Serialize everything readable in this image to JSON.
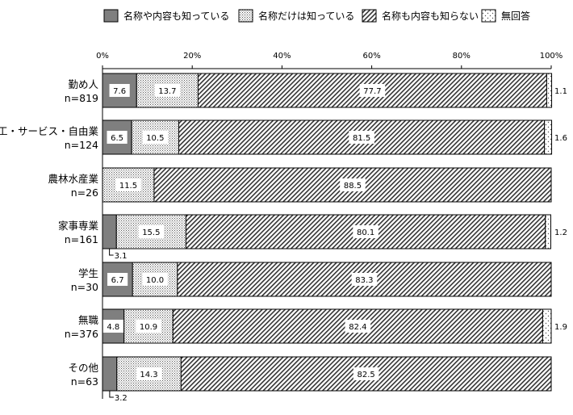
{
  "chart_data": {
    "type": "bar",
    "orientation": "horizontal",
    "stacked": "percent",
    "legend_position": "top",
    "grid": false,
    "xlim": [
      0,
      100
    ],
    "x_ticks": [
      "0%",
      "20%",
      "40%",
      "60%",
      "80%",
      "100%"
    ],
    "x_tick_values": [
      0,
      20,
      40,
      60,
      80,
      100
    ],
    "categories": [
      [
        "勤め人",
        "n=819"
      ],
      [
        "商工・サービス・自由業",
        "n=124"
      ],
      [
        "農林水産業",
        "n=26"
      ],
      [
        "家事専業",
        "n=161"
      ],
      [
        "学生",
        "n=30"
      ],
      [
        "無職",
        "n=376"
      ],
      [
        "その他",
        "n=63"
      ]
    ],
    "series": [
      {
        "name": "名称や内容も知っている",
        "color": "#7f7f7f",
        "pattern": "solid-gray",
        "values": [
          7.6,
          6.5,
          0,
          3.1,
          6.7,
          4.8,
          3.2
        ],
        "labels": [
          "7.6",
          "6.5",
          "",
          "3.1",
          "6.7",
          "4.8",
          "3.2"
        ]
      },
      {
        "name": "名称だけは知っている",
        "color": "#ffffff",
        "pattern": "fine-dots",
        "values": [
          13.7,
          10.5,
          11.5,
          15.5,
          10.0,
          10.9,
          14.3
        ],
        "labels": [
          "13.7",
          "10.5",
          "11.5",
          "15.5",
          "10.0",
          "10.9",
          "14.3"
        ]
      },
      {
        "name": "名称も内容も知らない",
        "color": "#ffffff",
        "pattern": "diagonal-hatch",
        "values": [
          77.7,
          81.5,
          88.5,
          80.1,
          83.3,
          82.4,
          82.5
        ],
        "labels": [
          "77.7",
          "81.5",
          "88.5",
          "80.1",
          "83.3",
          "82.4",
          "82.5"
        ]
      },
      {
        "name": "無回答",
        "color": "#ffffff",
        "pattern": "sparse-dots",
        "values": [
          1.1,
          1.6,
          0,
          1.2,
          0,
          1.9,
          0
        ],
        "labels": [
          "1.1",
          "1.6",
          "",
          "1.2",
          "",
          "1.9",
          ""
        ]
      }
    ]
  }
}
